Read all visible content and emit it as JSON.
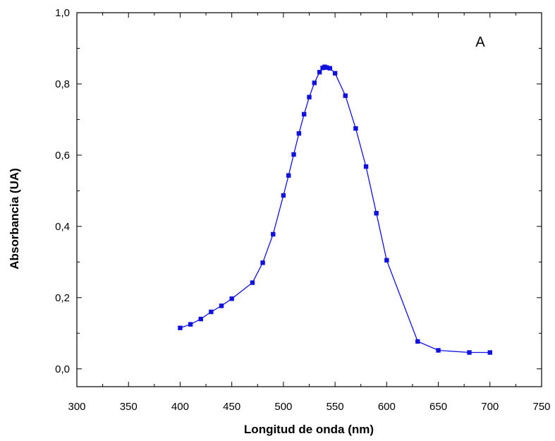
{
  "chart_data": {
    "type": "line",
    "title": "",
    "panel_label": "A",
    "xlabel": "Longitud de onda (nm)",
    "ylabel": "Absorbancia (UA)",
    "xlim": [
      300,
      750
    ],
    "ylim": [
      -0.05,
      1.0
    ],
    "x_ticks": [
      300,
      350,
      400,
      450,
      500,
      550,
      600,
      650,
      700,
      750
    ],
    "x_tick_labels": [
      "300",
      "350",
      "400",
      "450",
      "500",
      "550",
      "600",
      "650",
      "700",
      "750"
    ],
    "y_ticks": [
      0.0,
      0.2,
      0.4,
      0.6,
      0.8,
      1.0
    ],
    "y_tick_labels": [
      "0,0",
      "0,2",
      "0,4",
      "0,6",
      "0,8",
      "1,0"
    ],
    "grid": false,
    "marker": "square",
    "series_color": "#1010e0",
    "series": [
      {
        "x": [
          400,
          410,
          420,
          430,
          440,
          450,
          470,
          480,
          490,
          500,
          505,
          510,
          515,
          520,
          525,
          530,
          535,
          538,
          540,
          542,
          545,
          550,
          560,
          570,
          580,
          590,
          600,
          630,
          650,
          680,
          700
        ],
        "y": [
          0.115,
          0.125,
          0.14,
          0.16,
          0.177,
          0.197,
          0.242,
          0.298,
          0.378,
          0.487,
          0.543,
          0.602,
          0.661,
          0.715,
          0.763,
          0.803,
          0.833,
          0.845,
          0.848,
          0.846,
          0.844,
          0.83,
          0.767,
          0.675,
          0.568,
          0.437,
          0.305,
          0.077,
          0.052,
          0.046,
          0.046
        ]
      }
    ]
  }
}
